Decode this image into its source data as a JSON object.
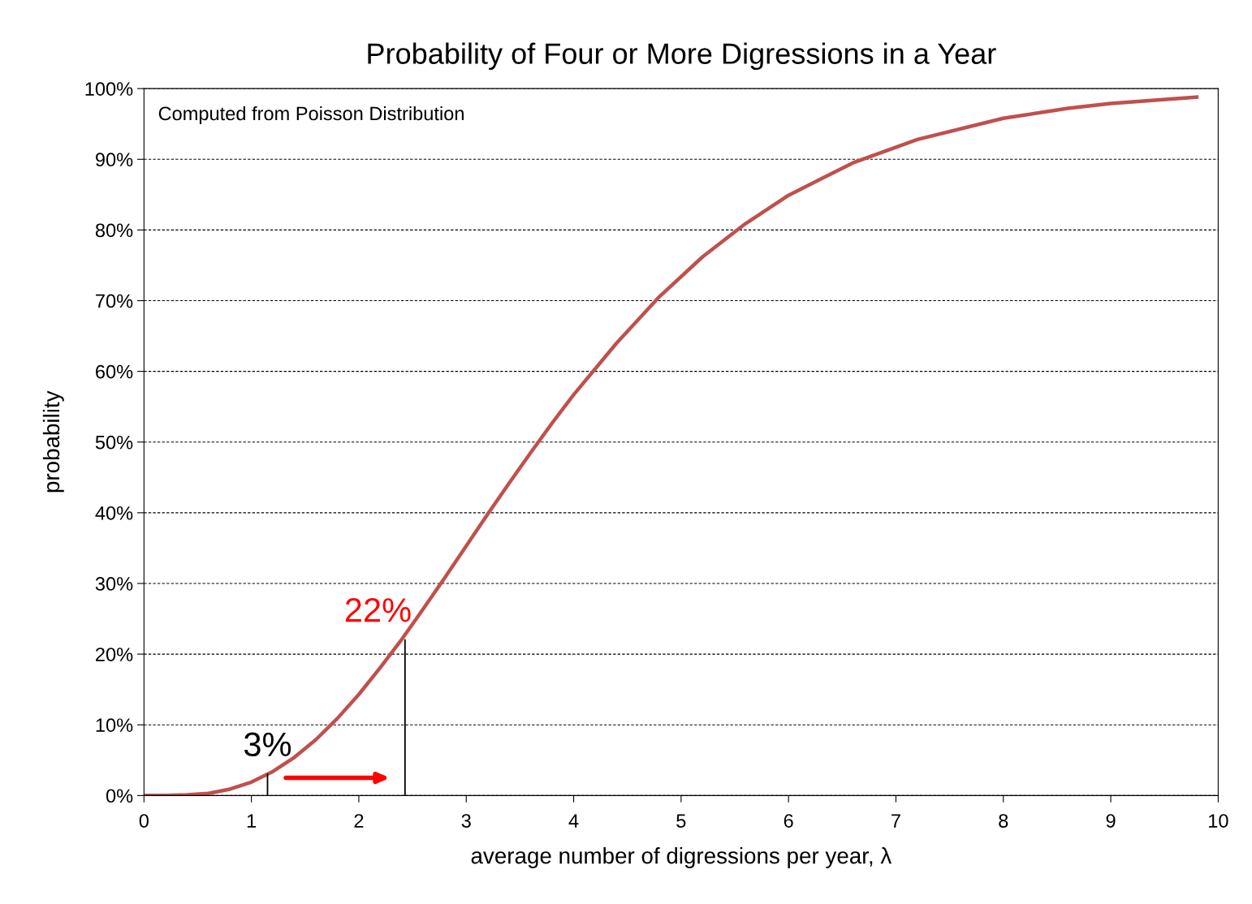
{
  "chart_data": {
    "type": "line",
    "title": "Probability of Four or More Digressions in a Year",
    "xlabel": "average number of digressions per year, λ",
    "ylabel": "probability",
    "x": [
      0,
      0.2,
      0.4,
      0.6,
      0.8,
      1.0,
      1.2,
      1.4,
      1.6,
      1.8,
      2.0,
      2.2,
      2.4,
      2.6,
      2.8,
      3.0,
      3.2,
      3.4,
      3.6,
      3.8,
      4.0,
      4.4,
      4.8,
      5.2,
      5.6,
      6.0,
      6.6,
      7.2,
      8.0,
      8.6,
      9.0,
      9.8
    ],
    "series": [
      {
        "color": "#c0504d",
        "values": [
          0,
          0,
          0.1,
          0.3,
          0.9,
          1.9,
          3.4,
          5.4,
          7.9,
          10.9,
          14.3,
          18.1,
          22.1,
          26.4,
          30.8,
          35.3,
          39.8,
          44.2,
          48.5,
          52.7,
          56.7,
          64.0,
          70.6,
          76.2,
          80.9,
          84.9,
          89.5,
          92.8,
          95.8,
          97.2,
          97.9,
          98.8
        ]
      }
    ],
    "xlim": [
      0,
      10
    ],
    "xticks": [
      0,
      1,
      2,
      3,
      4,
      5,
      6,
      7,
      8,
      9,
      10
    ],
    "ylim": [
      0,
      100
    ],
    "yticks": [
      {
        "value": 0,
        "label": "0%"
      },
      {
        "value": 10,
        "label": "10%"
      },
      {
        "value": 20,
        "label": "20%"
      },
      {
        "value": 30,
        "label": "30%"
      },
      {
        "value": 40,
        "label": "40%"
      },
      {
        "value": 50,
        "label": "50%"
      },
      {
        "value": 60,
        "label": "60%"
      },
      {
        "value": 70,
        "label": "70%"
      },
      {
        "value": 80,
        "label": "80%"
      },
      {
        "value": 90,
        "label": "90%"
      },
      {
        "value": 100,
        "label": "100%"
      }
    ],
    "grid": "y",
    "marker": "none",
    "line_style": "solid",
    "legend": false,
    "annotations": [
      "Computed from Poisson Distribution",
      {
        "text": "22%",
        "x": 2.43,
        "y": 22
      },
      {
        "text": "3%",
        "x": 1.15,
        "y": 3
      }
    ]
  }
}
